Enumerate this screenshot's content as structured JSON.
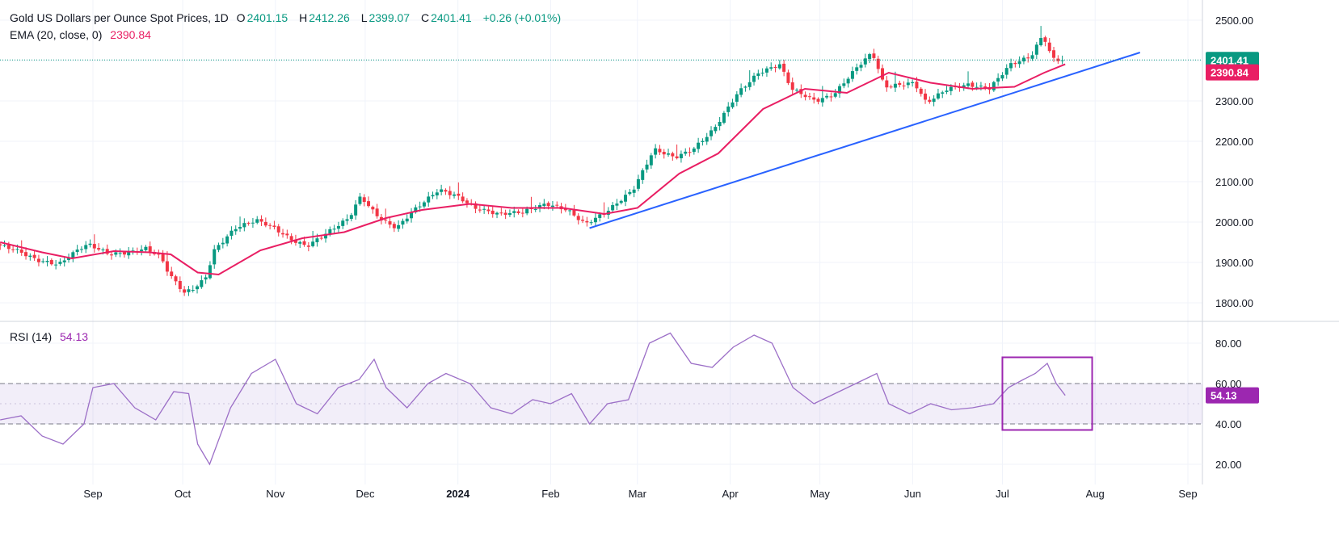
{
  "chart_data": [
    {
      "type": "candlestick",
      "title": "Gold US Dollars per Ounce Spot Prices, 1D",
      "ohlc_labels": {
        "o": "O",
        "h": "H",
        "l": "L",
        "c": "C"
      },
      "ohlc": {
        "open": "2401.15",
        "high": "2412.26",
        "low": "2399.07",
        "close": "2401.41",
        "change": "+0.26 (+0.01%)"
      },
      "ema_label": "EMA (20, close, 0)",
      "ema_value": "2390.84",
      "last_price_tag": "2401.41",
      "ema_tag": "2390.84",
      "last_price": 2401.41,
      "ema_last": 2390.84,
      "ylim": [
        1760,
        2520
      ],
      "y_ticks": [
        "1800.00",
        "1900.00",
        "2000.00",
        "2100.00",
        "2200.00",
        "2300.00",
        "2400.00",
        "2500.00"
      ],
      "x_tick_labels": [
        "Sep",
        "Oct",
        "Nov",
        "Dec",
        "2024",
        "Feb",
        "Mar",
        "Apr",
        "May",
        "Jun",
        "Jul",
        "Aug",
        "Sep"
      ],
      "price_path": [
        [
          "2023-08-01",
          1945
        ],
        [
          "2023-08-08",
          1930
        ],
        [
          "2023-08-15",
          1905
        ],
        [
          "2023-08-22",
          1895
        ],
        [
          "2023-08-29",
          1935
        ],
        [
          "2023-09-01",
          1945
        ],
        [
          "2023-09-08",
          1920
        ],
        [
          "2023-09-15",
          1925
        ],
        [
          "2023-09-20",
          1935
        ],
        [
          "2023-09-25",
          1915
        ],
        [
          "2023-09-28",
          1870
        ],
        [
          "2023-10-03",
          1825
        ],
        [
          "2023-10-06",
          1835
        ],
        [
          "2023-10-10",
          1860
        ],
        [
          "2023-10-13",
          1930
        ],
        [
          "2023-10-20",
          1985
        ],
        [
          "2023-10-27",
          2005
        ],
        [
          "2023-11-01",
          1990
        ],
        [
          "2023-11-08",
          1955
        ],
        [
          "2023-11-13",
          1940
        ],
        [
          "2023-11-20",
          1975
        ],
        [
          "2023-11-27",
          2010
        ],
        [
          "2023-12-01",
          2065
        ],
        [
          "2023-12-04",
          2035
        ],
        [
          "2023-12-08",
          2005
        ],
        [
          "2023-12-13",
          1985
        ],
        [
          "2023-12-18",
          2025
        ],
        [
          "2023-12-27",
          2080
        ],
        [
          "2024-01-02",
          2065
        ],
        [
          "2024-01-08",
          2035
        ],
        [
          "2024-01-16",
          2020
        ],
        [
          "2024-01-24",
          2025
        ],
        [
          "2024-02-01",
          2045
        ],
        [
          "2024-02-08",
          2030
        ],
        [
          "2024-02-14",
          1995
        ],
        [
          "2024-02-21",
          2025
        ],
        [
          "2024-03-01",
          2080
        ],
        [
          "2024-03-08",
          2180
        ],
        [
          "2024-03-15",
          2160
        ],
        [
          "2024-03-21",
          2180
        ],
        [
          "2024-03-28",
          2230
        ],
        [
          "2024-04-05",
          2320
        ],
        [
          "2024-04-12",
          2370
        ],
        [
          "2024-04-19",
          2390
        ],
        [
          "2024-04-23",
          2330
        ],
        [
          "2024-05-01",
          2300
        ],
        [
          "2024-05-07",
          2315
        ],
        [
          "2024-05-15",
          2385
        ],
        [
          "2024-05-20",
          2420
        ],
        [
          "2024-05-24",
          2335
        ],
        [
          "2024-06-03",
          2345
        ],
        [
          "2024-06-07",
          2295
        ],
        [
          "2024-06-14",
          2330
        ],
        [
          "2024-06-21",
          2340
        ],
        [
          "2024-06-28",
          2330
        ],
        [
          "2024-07-05",
          2390
        ],
        [
          "2024-07-12",
          2410
        ],
        [
          "2024-07-16",
          2465
        ],
        [
          "2024-07-19",
          2405
        ],
        [
          "2024-07-22",
          2401
        ]
      ],
      "ema_path": [
        [
          "2023-08-01",
          1950
        ],
        [
          "2023-08-15",
          1925
        ],
        [
          "2023-08-25",
          1910
        ],
        [
          "2023-09-08",
          1928
        ],
        [
          "2023-09-20",
          1925
        ],
        [
          "2023-09-27",
          1920
        ],
        [
          "2023-10-06",
          1875
        ],
        [
          "2023-10-13",
          1870
        ],
        [
          "2023-10-27",
          1930
        ],
        [
          "2023-11-10",
          1960
        ],
        [
          "2023-11-24",
          1975
        ],
        [
          "2023-12-08",
          2010
        ],
        [
          "2023-12-20",
          2030
        ],
        [
          "2024-01-05",
          2045
        ],
        [
          "2024-01-19",
          2035
        ],
        [
          "2024-02-05",
          2035
        ],
        [
          "2024-02-19",
          2020
        ],
        [
          "2024-03-01",
          2035
        ],
        [
          "2024-03-15",
          2120
        ],
        [
          "2024-03-28",
          2170
        ],
        [
          "2024-04-12",
          2280
        ],
        [
          "2024-04-26",
          2330
        ],
        [
          "2024-05-10",
          2320
        ],
        [
          "2024-05-24",
          2370
        ],
        [
          "2024-06-07",
          2345
        ],
        [
          "2024-06-21",
          2330
        ],
        [
          "2024-07-05",
          2335
        ],
        [
          "2024-07-15",
          2370
        ],
        [
          "2024-07-22",
          2390.84
        ]
      ],
      "trendline": {
        "from": [
          "2024-02-14",
          1985
        ],
        "to": [
          "2024-08-16",
          2420
        ]
      }
    },
    {
      "type": "line",
      "title": "RSI (14)",
      "value_label": "54.13",
      "last_tag": "54.13",
      "ylim": [
        10,
        90
      ],
      "y_ticks": [
        "20.00",
        "40.00",
        "60.00",
        "80.00"
      ],
      "band": [
        40,
        60
      ],
      "x": [
        "2023-08-01",
        "2023-08-08",
        "2023-08-15",
        "2023-08-22",
        "2023-08-29",
        "2023-09-01",
        "2023-09-08",
        "2023-09-15",
        "2023-09-22",
        "2023-09-28",
        "2023-10-03",
        "2023-10-06",
        "2023-10-10",
        "2023-10-17",
        "2023-10-24",
        "2023-11-01",
        "2023-11-08",
        "2023-11-15",
        "2023-11-22",
        "2023-11-29",
        "2023-12-04",
        "2023-12-08",
        "2023-12-15",
        "2023-12-22",
        "2023-12-28",
        "2024-01-05",
        "2024-01-12",
        "2024-01-19",
        "2024-01-26",
        "2024-02-01",
        "2024-02-08",
        "2024-02-14",
        "2024-02-20",
        "2024-02-27",
        "2024-03-05",
        "2024-03-12",
        "2024-03-19",
        "2024-03-26",
        "2024-04-02",
        "2024-04-09",
        "2024-04-15",
        "2024-04-22",
        "2024-04-29",
        "2024-05-06",
        "2024-05-13",
        "2024-05-20",
        "2024-05-24",
        "2024-05-31",
        "2024-06-07",
        "2024-06-14",
        "2024-06-21",
        "2024-06-28",
        "2024-07-03",
        "2024-07-08",
        "2024-07-12",
        "2024-07-16",
        "2024-07-19",
        "2024-07-22"
      ],
      "values": [
        42,
        44,
        34,
        30,
        40,
        58,
        60,
        48,
        42,
        56,
        55,
        30,
        20,
        48,
        65,
        72,
        50,
        45,
        58,
        62,
        72,
        58,
        48,
        60,
        65,
        60,
        48,
        45,
        52,
        50,
        55,
        40,
        50,
        52,
        80,
        85,
        70,
        68,
        78,
        84,
        80,
        58,
        50,
        55,
        60,
        65,
        50,
        45,
        50,
        47,
        48,
        50,
        58,
        62,
        65,
        70,
        60,
        54.13
      ]
    }
  ],
  "annotation": {
    "type": "rectangle",
    "target": "rsi-recent",
    "color": "#9c27b0"
  }
}
